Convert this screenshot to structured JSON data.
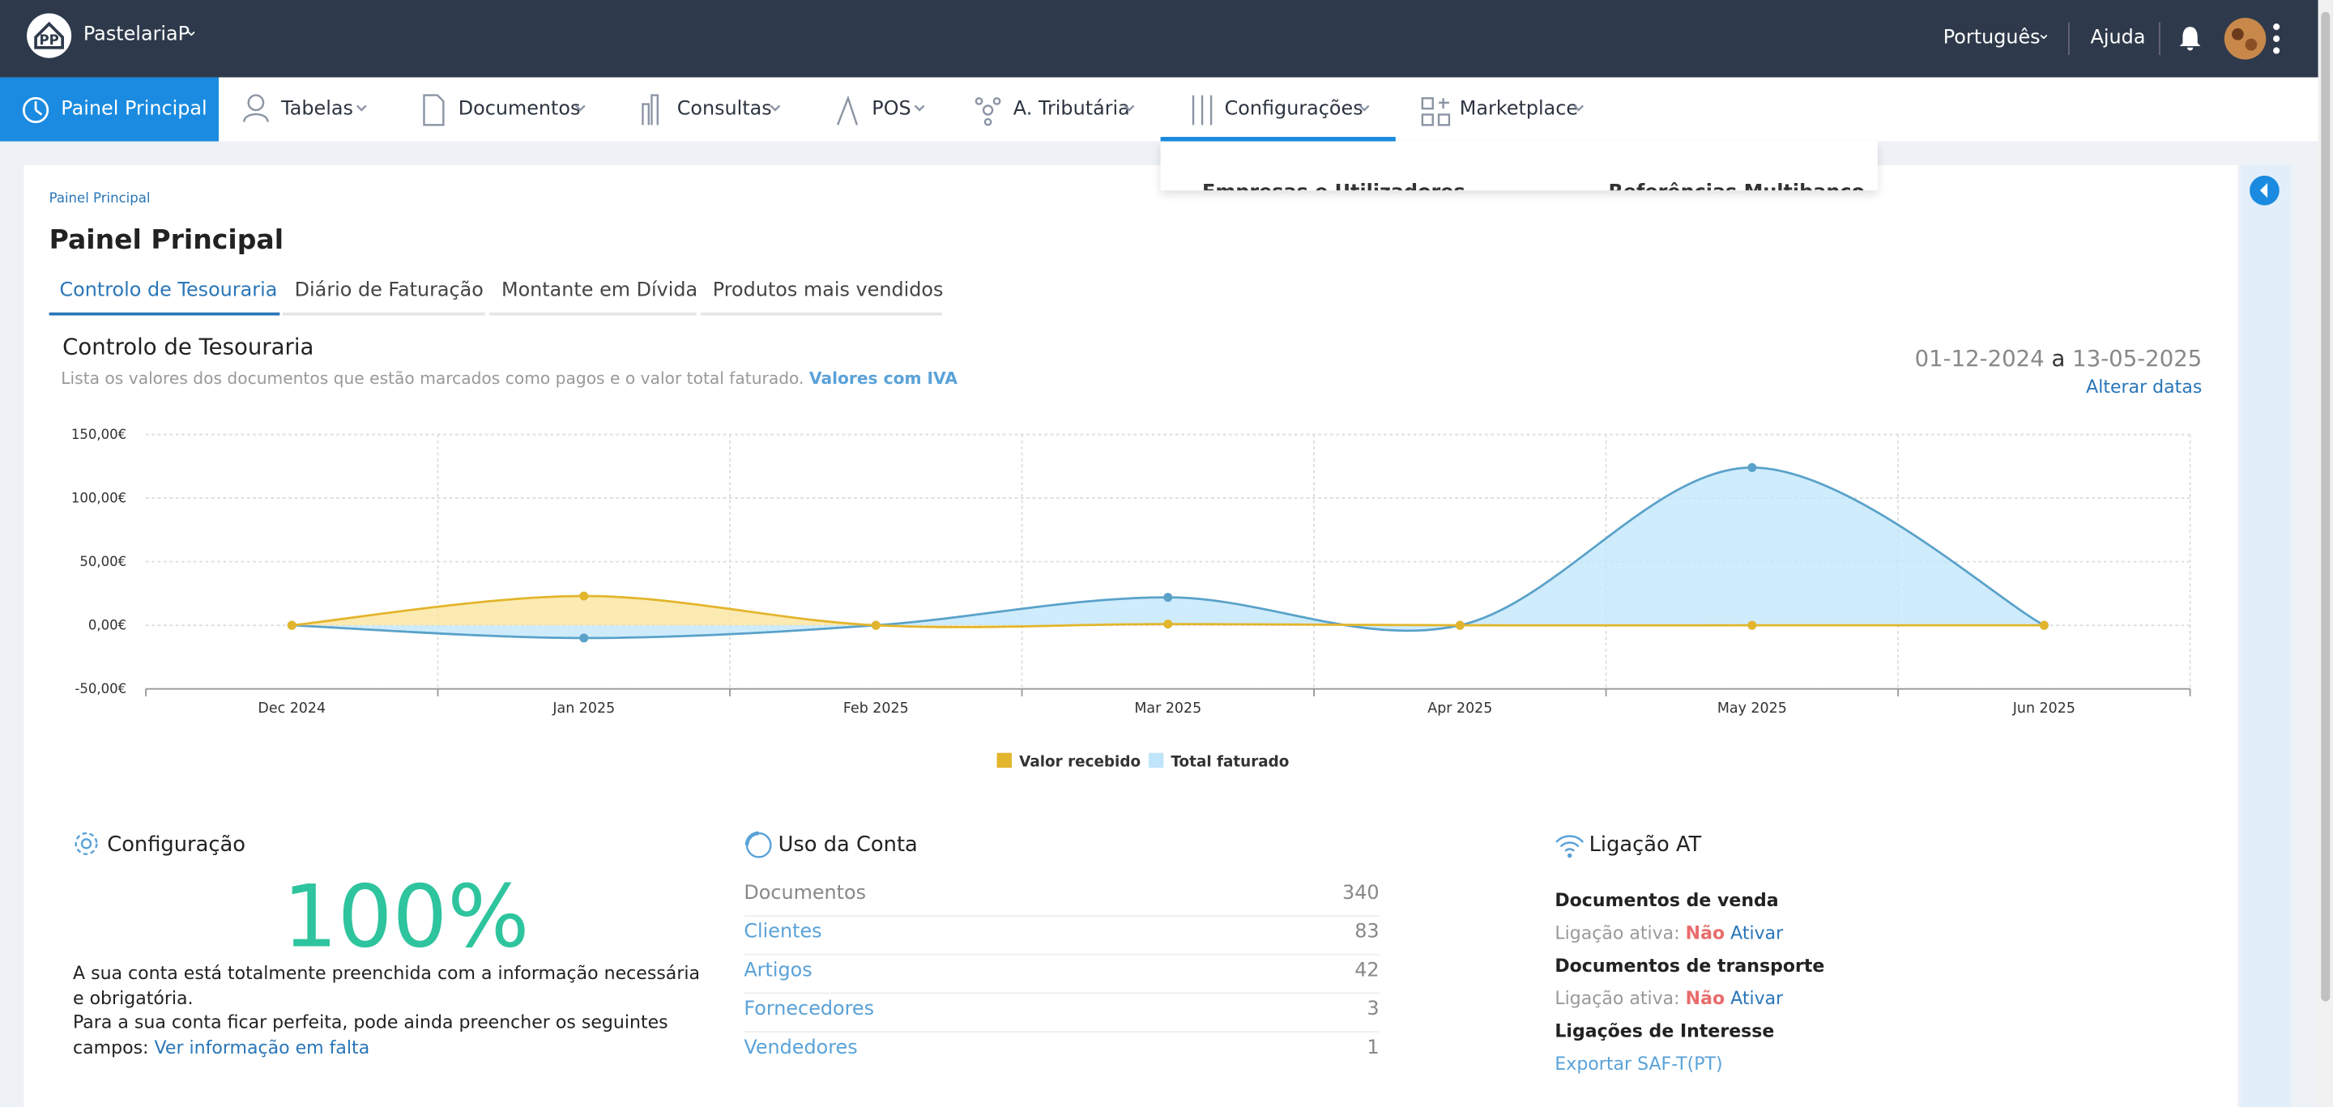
{
  "topbar": {
    "company": "PastelariaP",
    "language": "Português",
    "help": "Ajuda"
  },
  "nav": {
    "items": [
      "Painel Principal",
      "Tabelas",
      "Documentos",
      "Consultas",
      "POS",
      "A. Tributária",
      "Configurações",
      "Marketplace"
    ],
    "dropdown": [
      "Empresas e Utilizadores",
      "Referências Multibanco"
    ]
  },
  "breadcrumb": "Painel Principal",
  "page_title": "Painel Principal",
  "tabs": [
    "Controlo de Tesouraria",
    "Diário de Faturação",
    "Montante em Dívida",
    "Produtos mais vendidos"
  ],
  "panel": {
    "title": "Controlo de Tesouraria",
    "subtitle": "Lista os valores dos documentos que estão marcados como pagos e o valor total faturado.",
    "subtitle_link": "Valores com IVA",
    "date_from": "01-12-2024",
    "date_sep": "a",
    "date_to": "13-05-2025",
    "change_dates": "Alterar datas"
  },
  "chart_data": {
    "type": "area",
    "categories": [
      "Dec 2024",
      "Jan 2025",
      "Feb 2025",
      "Mar 2025",
      "Apr 2025",
      "May 2025",
      "Jun 2025"
    ],
    "series": [
      {
        "name": "Valor recebido",
        "color": "#e3b52c",
        "fill": "#fbe39a",
        "values": [
          0,
          23,
          0,
          1,
          0,
          0,
          0
        ]
      },
      {
        "name": "Total faturado",
        "color": "#5aa2c9",
        "fill": "#bfe5fb",
        "values": [
          0,
          -10,
          0,
          22,
          0,
          124,
          0
        ]
      }
    ],
    "ylim": [
      -50,
      150
    ],
    "yticks": [
      {
        "value": -50,
        "label": "-50,00€"
      },
      {
        "value": 0,
        "label": "0,00€"
      },
      {
        "value": 50,
        "label": "50,00€"
      },
      {
        "value": 100,
        "label": "100,00€"
      },
      {
        "value": 150,
        "label": "150,00€"
      }
    ],
    "grid": true,
    "legend": "bottom"
  },
  "config": {
    "title": "Configuração",
    "percent": "100%",
    "text1": "A sua conta está totalmente preenchida com a informação necessária e obrigatória.",
    "text2": "Para a sua conta ficar perfeita, pode ainda preencher os seguintes campos:",
    "link": "Ver informação em falta"
  },
  "usage": {
    "title": "Uso da Conta",
    "rows": [
      [
        "Documentos",
        "340"
      ],
      [
        "Clientes",
        "83"
      ],
      [
        "Artigos",
        "42"
      ],
      [
        "Fornecedores",
        "3"
      ],
      [
        "Vendedores",
        "1"
      ]
    ]
  },
  "at": {
    "title": "Ligação AT",
    "sales": "Documentos de venda",
    "transport": "Documentos de transporte",
    "active_label": "Ligação ativa:",
    "no": "Não",
    "activate": "Ativar",
    "interest": "Ligações de Interesse",
    "export": "Exportar SAF-T(PT)"
  }
}
